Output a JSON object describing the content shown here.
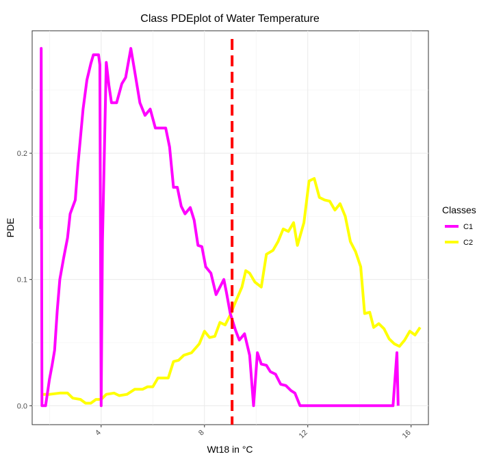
{
  "chart_data": {
    "type": "line",
    "title": "Class PDEplot of Water Temperature",
    "xlabel": "Wt18 in °C",
    "ylabel": "PDE",
    "xlim": [
      1.33,
      16.67
    ],
    "ylim": [
      -0.015,
      0.297
    ],
    "x_ticks": [
      {
        "value": 4,
        "label": "4"
      },
      {
        "value": 8,
        "label": "8"
      },
      {
        "value": 12,
        "label": "12"
      },
      {
        "value": 16,
        "label": "16"
      }
    ],
    "y_ticks": [
      {
        "value": 0.0,
        "label": "0.0"
      },
      {
        "value": 0.1,
        "label": "0.1"
      },
      {
        "value": 0.2,
        "label": "0.2"
      }
    ],
    "grid": true,
    "legend": {
      "title": "Classes",
      "position": "right"
    },
    "vline": {
      "x": 9.07,
      "color": "#ff0000",
      "style": "dashed"
    },
    "series": [
      {
        "name": "C1",
        "color": "#ff00ff",
        "points": [
          [
            1.66,
            0.14
          ],
          [
            1.68,
            0.283
          ],
          [
            1.71,
            0.0
          ],
          [
            1.85,
            0.0
          ],
          [
            2.0,
            0.021
          ],
          [
            2.1,
            0.032
          ],
          [
            2.2,
            0.044
          ],
          [
            2.3,
            0.075
          ],
          [
            2.4,
            0.1
          ],
          [
            2.55,
            0.117
          ],
          [
            2.7,
            0.133
          ],
          [
            2.8,
            0.152
          ],
          [
            3.0,
            0.163
          ],
          [
            3.1,
            0.19
          ],
          [
            3.3,
            0.235
          ],
          [
            3.45,
            0.258
          ],
          [
            3.6,
            0.271
          ],
          [
            3.7,
            0.278
          ],
          [
            3.9,
            0.278
          ],
          [
            3.95,
            0.27
          ],
          [
            4.0,
            0.0
          ],
          [
            4.05,
            0.13
          ],
          [
            4.2,
            0.272
          ],
          [
            4.3,
            0.254
          ],
          [
            4.4,
            0.24
          ],
          [
            4.6,
            0.24
          ],
          [
            4.8,
            0.255
          ],
          [
            4.95,
            0.26
          ],
          [
            5.15,
            0.283
          ],
          [
            5.3,
            0.265
          ],
          [
            5.5,
            0.24
          ],
          [
            5.7,
            0.23
          ],
          [
            5.9,
            0.235
          ],
          [
            6.1,
            0.22
          ],
          [
            6.5,
            0.22
          ],
          [
            6.65,
            0.205
          ],
          [
            6.8,
            0.173
          ],
          [
            6.95,
            0.173
          ],
          [
            7.1,
            0.158
          ],
          [
            7.25,
            0.152
          ],
          [
            7.45,
            0.157
          ],
          [
            7.6,
            0.147
          ],
          [
            7.75,
            0.127
          ],
          [
            7.9,
            0.126
          ],
          [
            8.05,
            0.11
          ],
          [
            8.25,
            0.105
          ],
          [
            8.45,
            0.088
          ],
          [
            8.55,
            0.092
          ],
          [
            8.75,
            0.1
          ],
          [
            8.85,
            0.09
          ],
          [
            9.0,
            0.073
          ],
          [
            9.2,
            0.06
          ],
          [
            9.35,
            0.052
          ],
          [
            9.55,
            0.057
          ],
          [
            9.75,
            0.04
          ],
          [
            9.9,
            0.0
          ],
          [
            10.05,
            0.042
          ],
          [
            10.2,
            0.033
          ],
          [
            10.4,
            0.032
          ],
          [
            10.55,
            0.027
          ],
          [
            10.75,
            0.025
          ],
          [
            10.95,
            0.017
          ],
          [
            11.15,
            0.016
          ],
          [
            11.35,
            0.012
          ],
          [
            11.5,
            0.01
          ],
          [
            11.7,
            0.0
          ],
          [
            15.1,
            0.0
          ],
          [
            15.3,
            0.0
          ],
          [
            15.45,
            0.042
          ],
          [
            15.5,
            0.0
          ]
        ]
      },
      {
        "name": "C2",
        "color": "#ffff00",
        "points": [
          [
            1.66,
            0.009
          ],
          [
            2.0,
            0.009
          ],
          [
            2.4,
            0.01
          ],
          [
            2.7,
            0.01
          ],
          [
            2.9,
            0.006
          ],
          [
            3.2,
            0.005
          ],
          [
            3.4,
            0.002
          ],
          [
            3.6,
            0.002
          ],
          [
            3.8,
            0.005
          ],
          [
            4.0,
            0.005
          ],
          [
            4.2,
            0.009
          ],
          [
            4.5,
            0.01
          ],
          [
            4.7,
            0.008
          ],
          [
            5.0,
            0.009
          ],
          [
            5.3,
            0.013
          ],
          [
            5.6,
            0.013
          ],
          [
            5.8,
            0.015
          ],
          [
            6.0,
            0.015
          ],
          [
            6.2,
            0.022
          ],
          [
            6.6,
            0.022
          ],
          [
            6.8,
            0.035
          ],
          [
            7.0,
            0.036
          ],
          [
            7.2,
            0.04
          ],
          [
            7.5,
            0.042
          ],
          [
            7.8,
            0.049
          ],
          [
            8.0,
            0.059
          ],
          [
            8.2,
            0.054
          ],
          [
            8.4,
            0.055
          ],
          [
            8.6,
            0.066
          ],
          [
            8.8,
            0.064
          ],
          [
            9.0,
            0.072
          ],
          [
            9.2,
            0.082
          ],
          [
            9.45,
            0.094
          ],
          [
            9.6,
            0.107
          ],
          [
            9.75,
            0.105
          ],
          [
            9.95,
            0.098
          ],
          [
            10.2,
            0.094
          ],
          [
            10.4,
            0.12
          ],
          [
            10.65,
            0.123
          ],
          [
            10.85,
            0.13
          ],
          [
            11.05,
            0.14
          ],
          [
            11.25,
            0.138
          ],
          [
            11.45,
            0.145
          ],
          [
            11.6,
            0.127
          ],
          [
            11.85,
            0.145
          ],
          [
            12.05,
            0.178
          ],
          [
            12.25,
            0.18
          ],
          [
            12.45,
            0.165
          ],
          [
            12.65,
            0.163
          ],
          [
            12.85,
            0.162
          ],
          [
            13.05,
            0.155
          ],
          [
            13.25,
            0.16
          ],
          [
            13.45,
            0.15
          ],
          [
            13.65,
            0.13
          ],
          [
            13.85,
            0.122
          ],
          [
            14.05,
            0.11
          ],
          [
            14.2,
            0.073
          ],
          [
            14.4,
            0.074
          ],
          [
            14.55,
            0.062
          ],
          [
            14.75,
            0.065
          ],
          [
            14.95,
            0.061
          ],
          [
            15.15,
            0.053
          ],
          [
            15.35,
            0.049
          ],
          [
            15.55,
            0.047
          ],
          [
            15.75,
            0.052
          ],
          [
            15.95,
            0.059
          ],
          [
            16.15,
            0.056
          ],
          [
            16.35,
            0.062
          ]
        ]
      }
    ]
  }
}
